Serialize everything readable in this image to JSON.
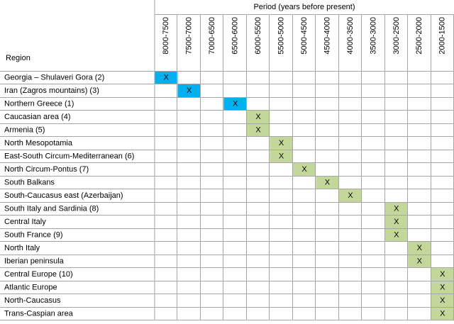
{
  "table": {
    "header": {
      "region": "Region",
      "period": "Period (years before present)",
      "columns": [
        "8000-7500",
        "7500-7000",
        "7000-6500",
        "6500-6000",
        "6000-5500",
        "5500-5000",
        "5000-4500",
        "4500-4000",
        "4000-3500",
        "3500-3000",
        "3000-2500",
        "2500-2000",
        "2000-1500"
      ]
    },
    "rows": [
      {
        "region": "Georgia – Shulaveri Gora (2)",
        "color": "#00b0f0",
        "cells": [
          "X",
          null,
          null,
          null,
          null,
          null,
          null,
          null,
          null,
          null,
          null,
          null,
          null
        ]
      },
      {
        "region": "Iran (Zagros mountains) (3)",
        "color": "#00b0f0",
        "cells": [
          null,
          "X",
          null,
          null,
          null,
          null,
          null,
          null,
          null,
          null,
          null,
          null,
          null
        ]
      },
      {
        "region": "Northern Greece (1)",
        "color": "#00b0f0",
        "cells": [
          null,
          null,
          null,
          "X",
          null,
          null,
          null,
          null,
          null,
          null,
          null,
          null,
          null
        ]
      },
      {
        "region": "Caucasian area (4)",
        "color": "#c4d79b",
        "cells": [
          null,
          null,
          null,
          null,
          "X",
          null,
          null,
          null,
          null,
          null,
          null,
          null,
          null
        ]
      },
      {
        "region": "Armenia (5)",
        "color": "#c4d79b",
        "cells": [
          null,
          null,
          null,
          null,
          "X",
          null,
          null,
          null,
          null,
          null,
          null,
          null,
          null
        ]
      },
      {
        "region": "North Mesopotamia",
        "color": "#c4d79b",
        "cells": [
          null,
          null,
          null,
          null,
          null,
          "X",
          null,
          null,
          null,
          null,
          null,
          null,
          null
        ]
      },
      {
        "region": "East-South Circum-Mediterranean (6)",
        "color": "#c4d79b",
        "cells": [
          null,
          null,
          null,
          null,
          null,
          "X",
          null,
          null,
          null,
          null,
          null,
          null,
          null
        ]
      },
      {
        "region": "North Circum-Pontus (7)",
        "color": "#c4d79b",
        "cells": [
          null,
          null,
          null,
          null,
          null,
          null,
          "X",
          null,
          null,
          null,
          null,
          null,
          null
        ]
      },
      {
        "region": "South Balkans",
        "color": "#c4d79b",
        "cells": [
          null,
          null,
          null,
          null,
          null,
          null,
          null,
          "X",
          null,
          null,
          null,
          null,
          null
        ]
      },
      {
        "region": "South-Caucasus east (Azerbaijan)",
        "color": "#c4d79b",
        "cells": [
          null,
          null,
          null,
          null,
          null,
          null,
          null,
          null,
          "X",
          null,
          null,
          null,
          null
        ]
      },
      {
        "region": "South Italy and Sardinia (8)",
        "color": "#c4d79b",
        "cells": [
          null,
          null,
          null,
          null,
          null,
          null,
          null,
          null,
          null,
          null,
          "X",
          null,
          null
        ]
      },
      {
        "region": "Central Italy",
        "color": "#c4d79b",
        "cells": [
          null,
          null,
          null,
          null,
          null,
          null,
          null,
          null,
          null,
          null,
          "X",
          null,
          null
        ]
      },
      {
        "region": "South France (9)",
        "color": "#c4d79b",
        "cells": [
          null,
          null,
          null,
          null,
          null,
          null,
          null,
          null,
          null,
          null,
          "X",
          null,
          null
        ]
      },
      {
        "region": "North Italy",
        "color": "#c4d79b",
        "cells": [
          null,
          null,
          null,
          null,
          null,
          null,
          null,
          null,
          null,
          null,
          null,
          "X",
          null
        ]
      },
      {
        "region": "Iberian peninsula",
        "color": "#c4d79b",
        "cells": [
          null,
          null,
          null,
          null,
          null,
          null,
          null,
          null,
          null,
          null,
          null,
          "X",
          null
        ]
      },
      {
        "region": "Central Europe (10)",
        "color": "#c4d79b",
        "cells": [
          null,
          null,
          null,
          null,
          null,
          null,
          null,
          null,
          null,
          null,
          null,
          null,
          "X"
        ]
      },
      {
        "region": "Atlantic Europe",
        "color": "#c4d79b",
        "cells": [
          null,
          null,
          null,
          null,
          null,
          null,
          null,
          null,
          null,
          null,
          null,
          null,
          "X"
        ]
      },
      {
        "region": "North-Caucasus",
        "color": "#c4d79b",
        "cells": [
          null,
          null,
          null,
          null,
          null,
          null,
          null,
          null,
          null,
          null,
          null,
          null,
          "X"
        ]
      },
      {
        "region": "Trans-Caspian area",
        "color": "#c4d79b",
        "cells": [
          null,
          null,
          null,
          null,
          null,
          null,
          null,
          null,
          null,
          null,
          null,
          null,
          "X"
        ]
      }
    ]
  }
}
